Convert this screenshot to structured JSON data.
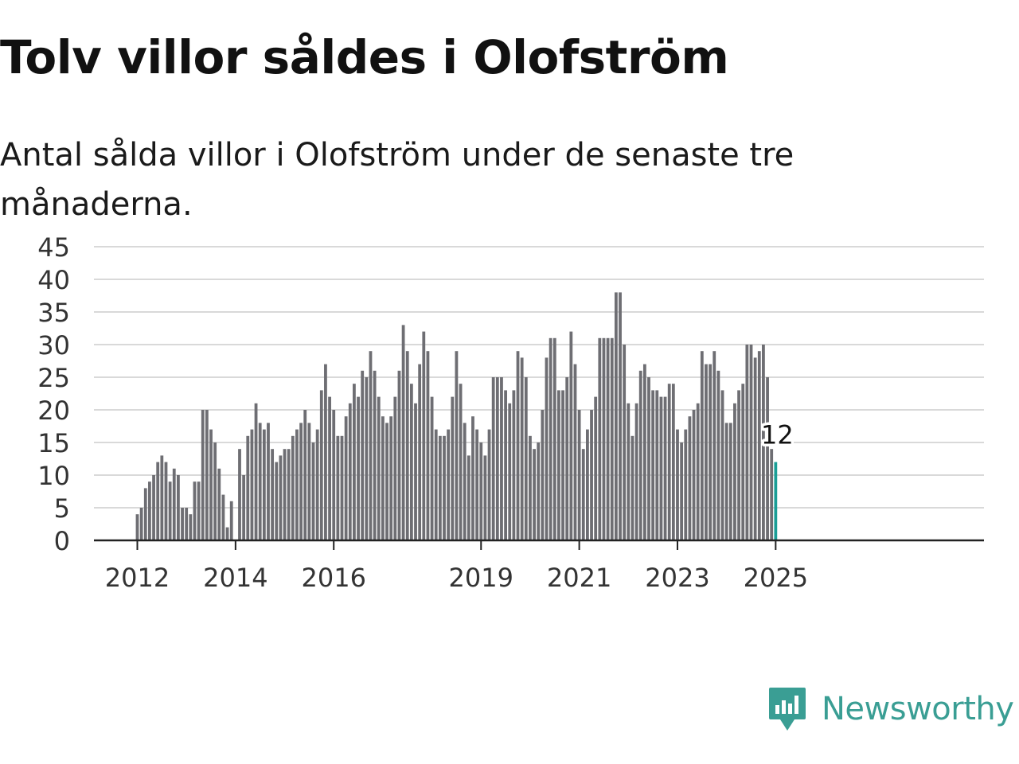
{
  "title": "Tolv villor såldes i Olofström",
  "subtitle": "Antal sålda villor i Olofström under de senaste tre månaderna.",
  "brand": {
    "name": "Newsworthy",
    "color": "#3a9e94",
    "icon": "chart-speech-bubble-icon"
  },
  "colors": {
    "bar": "#6e6e73",
    "highlight": "#1a9e96",
    "grid": "#d9d9d9",
    "axis": "#222222"
  },
  "chart_data": {
    "type": "bar",
    "title": "",
    "xlabel": "",
    "ylabel": "",
    "ylim": [
      0,
      45
    ],
    "yticks": [
      0,
      5,
      10,
      15,
      20,
      25,
      30,
      35,
      40,
      45
    ],
    "grid": true,
    "x_start": "2012-01",
    "x_tick_labels": [
      {
        "date": "2012-01",
        "label": "2012"
      },
      {
        "date": "2014-01",
        "label": "2014"
      },
      {
        "date": "2016-01",
        "label": "2016"
      },
      {
        "date": "2019-01",
        "label": "2019"
      },
      {
        "date": "2021-01",
        "label": "2021"
      },
      {
        "date": "2023-01",
        "label": "2023"
      },
      {
        "date": "2025-01",
        "label": "2025"
      }
    ],
    "values": [
      4,
      5,
      8,
      9,
      10,
      12,
      13,
      12,
      9,
      11,
      10,
      5,
      5,
      4,
      9,
      9,
      20,
      20,
      17,
      15,
      11,
      7,
      2,
      6,
      0,
      14,
      10,
      16,
      17,
      21,
      18,
      17,
      18,
      14,
      12,
      13,
      14,
      14,
      16,
      17,
      18,
      20,
      18,
      15,
      17,
      23,
      27,
      22,
      20,
      16,
      16,
      19,
      21,
      24,
      22,
      26,
      25,
      29,
      26,
      22,
      19,
      18,
      19,
      22,
      26,
      33,
      29,
      24,
      21,
      27,
      32,
      29,
      22,
      17,
      16,
      16,
      17,
      22,
      29,
      24,
      18,
      13,
      19,
      17,
      15,
      13,
      17,
      25,
      25,
      25,
      23,
      21,
      23,
      29,
      28,
      25,
      16,
      14,
      15,
      20,
      28,
      31,
      31,
      23,
      23,
      25,
      32,
      27,
      20,
      14,
      17,
      20,
      22,
      31,
      31,
      31,
      31,
      38,
      38,
      30,
      21,
      16,
      21,
      26,
      27,
      25,
      23,
      23,
      22,
      22,
      24,
      24,
      17,
      15,
      17,
      19,
      20,
      21,
      29,
      27,
      27,
      29,
      26,
      23,
      18,
      18,
      21,
      23,
      24,
      30,
      30,
      28,
      29,
      30,
      25,
      14,
      12
    ],
    "last_value_label": "12"
  }
}
